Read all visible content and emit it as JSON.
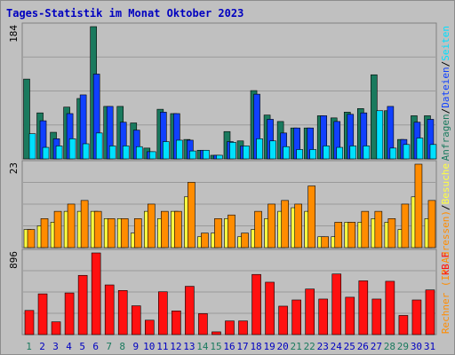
{
  "title": "Tages-Statistik im Monat Oktober 2023",
  "colors": {
    "background": "#c0c0c0",
    "title": "#0000c0",
    "hits": "#1a7a5e",
    "files": "#1040ff",
    "pages": "#00e0ff",
    "visits": "#ffff40",
    "sites": "#ff8c00",
    "kbytes": "#ff1010",
    "weekend_label": "#1a7a5e",
    "weekday_label": "#0000c0"
  },
  "chart_data": [
    {
      "type": "bar",
      "panel": "requests",
      "ymax_label": "184",
      "ylim": [
        0,
        184
      ],
      "right_label": {
        "parts": [
          {
            "text": "Anfragen",
            "color": "#1a7a5e"
          },
          {
            "text": "/",
            "color": "#000000"
          },
          {
            "text": "Dateien",
            "color": "#1040ff"
          },
          {
            "text": "/",
            "color": "#000000"
          },
          {
            "text": "Seiten",
            "color": "#00e0ff"
          }
        ]
      },
      "categories": [
        "1",
        "2",
        "3",
        "4",
        "5",
        "6",
        "7",
        "8",
        "9",
        "10",
        "11",
        "12",
        "13",
        "14",
        "15",
        "16",
        "17",
        "18",
        "19",
        "20",
        "21",
        "22",
        "23",
        "24",
        "25",
        "26",
        "27",
        "28",
        "29",
        "30",
        "31"
      ],
      "series": [
        {
          "name": "Anfragen",
          "values": [
            111,
            64,
            37,
            72,
            84,
            184,
            73,
            73,
            50,
            15,
            69,
            63,
            27,
            12,
            5,
            38,
            25,
            95,
            61,
            52,
            43,
            43,
            60,
            57,
            65,
            70,
            117,
            67,
            27,
            60,
            60
          ]
        },
        {
          "name": "Dateien",
          "values": [
            0,
            53,
            28,
            63,
            89,
            118,
            73,
            51,
            40,
            10,
            65,
            63,
            26,
            12,
            5,
            24,
            18,
            90,
            55,
            36,
            43,
            43,
            60,
            52,
            62,
            64,
            0,
            73,
            27,
            51,
            55
          ]
        },
        {
          "name": "Seiten",
          "values": [
            35,
            16,
            18,
            28,
            21,
            36,
            18,
            18,
            17,
            10,
            24,
            26,
            11,
            12,
            5,
            23,
            18,
            28,
            25,
            17,
            13,
            13,
            18,
            16,
            18,
            18,
            67,
            15,
            20,
            29,
            20
          ]
        }
      ]
    },
    {
      "type": "bar",
      "panel": "visits",
      "ymax_label": "23",
      "ylim": [
        0,
        23
      ],
      "right_label": {
        "parts": [
          {
            "text": "Rechner (IP-Adressen)",
            "color": "#ff8c00"
          },
          {
            "text": "/",
            "color": "#000000"
          },
          {
            "text": "Besuche",
            "color": "#ffff40"
          }
        ]
      },
      "categories": [
        "1",
        "2",
        "3",
        "4",
        "5",
        "6",
        "7",
        "8",
        "9",
        "10",
        "11",
        "12",
        "13",
        "14",
        "15",
        "16",
        "17",
        "18",
        "19",
        "20",
        "21",
        "22",
        "23",
        "24",
        "25",
        "26",
        "27",
        "28",
        "29",
        "30",
        "31"
      ],
      "series": [
        {
          "name": "Besuche",
          "values": [
            5,
            6,
            7,
            10,
            10,
            10,
            8,
            8,
            4,
            10,
            8,
            10,
            14,
            3,
            4,
            8,
            3,
            5,
            8,
            10,
            11,
            10,
            3,
            3,
            7,
            7,
            8,
            7,
            5,
            14,
            8
          ]
        },
        {
          "name": "Rechner (IP-Adressen)",
          "values": [
            5,
            8,
            10,
            12,
            13,
            10,
            8,
            8,
            8,
            12,
            10,
            10,
            18,
            4,
            8,
            9,
            4,
            10,
            12,
            13,
            12,
            17,
            3,
            7,
            7,
            10,
            10,
            8,
            12,
            23,
            13
          ]
        }
      ]
    },
    {
      "type": "bar",
      "panel": "traffic",
      "ymax_label": "896",
      "ylim": [
        0,
        896
      ],
      "right_label": {
        "parts": [
          {
            "text": "kB F",
            "color": "#ff1010"
          }
        ]
      },
      "categories": [
        "1",
        "2",
        "3",
        "4",
        "5",
        "6",
        "7",
        "8",
        "9",
        "10",
        "11",
        "12",
        "13",
        "14",
        "15",
        "16",
        "17",
        "18",
        "19",
        "20",
        "21",
        "22",
        "23",
        "24",
        "25",
        "26",
        "27",
        "28",
        "29",
        "30",
        "31"
      ],
      "series": [
        {
          "name": "kB F",
          "values": [
            265,
            447,
            140,
            457,
            650,
            896,
            545,
            484,
            316,
            158,
            470,
            260,
            530,
            230,
            30,
            150,
            150,
            660,
            575,
            312,
            380,
            500,
            390,
            665,
            410,
            590,
            390,
            585,
            210,
            380,
            490
          ]
        }
      ]
    }
  ],
  "days": [
    {
      "label": "1",
      "weekend": true
    },
    {
      "label": "2",
      "weekend": false
    },
    {
      "label": "3",
      "weekend": false
    },
    {
      "label": "4",
      "weekend": false
    },
    {
      "label": "5",
      "weekend": false
    },
    {
      "label": "6",
      "weekend": false
    },
    {
      "label": "7",
      "weekend": true
    },
    {
      "label": "8",
      "weekend": true
    },
    {
      "label": "9",
      "weekend": false
    },
    {
      "label": "10",
      "weekend": false
    },
    {
      "label": "11",
      "weekend": false
    },
    {
      "label": "12",
      "weekend": false
    },
    {
      "label": "13",
      "weekend": false
    },
    {
      "label": "14",
      "weekend": true
    },
    {
      "label": "15",
      "weekend": true
    },
    {
      "label": "16",
      "weekend": false
    },
    {
      "label": "17",
      "weekend": false
    },
    {
      "label": "18",
      "weekend": false
    },
    {
      "label": "19",
      "weekend": false
    },
    {
      "label": "20",
      "weekend": false
    },
    {
      "label": "21",
      "weekend": true
    },
    {
      "label": "22",
      "weekend": true
    },
    {
      "label": "23",
      "weekend": false
    },
    {
      "label": "24",
      "weekend": false
    },
    {
      "label": "25",
      "weekend": false
    },
    {
      "label": "26",
      "weekend": false
    },
    {
      "label": "27",
      "weekend": false
    },
    {
      "label": "28",
      "weekend": true
    },
    {
      "label": "29",
      "weekend": true
    },
    {
      "label": "30",
      "weekend": false
    },
    {
      "label": "31",
      "weekend": false
    }
  ]
}
